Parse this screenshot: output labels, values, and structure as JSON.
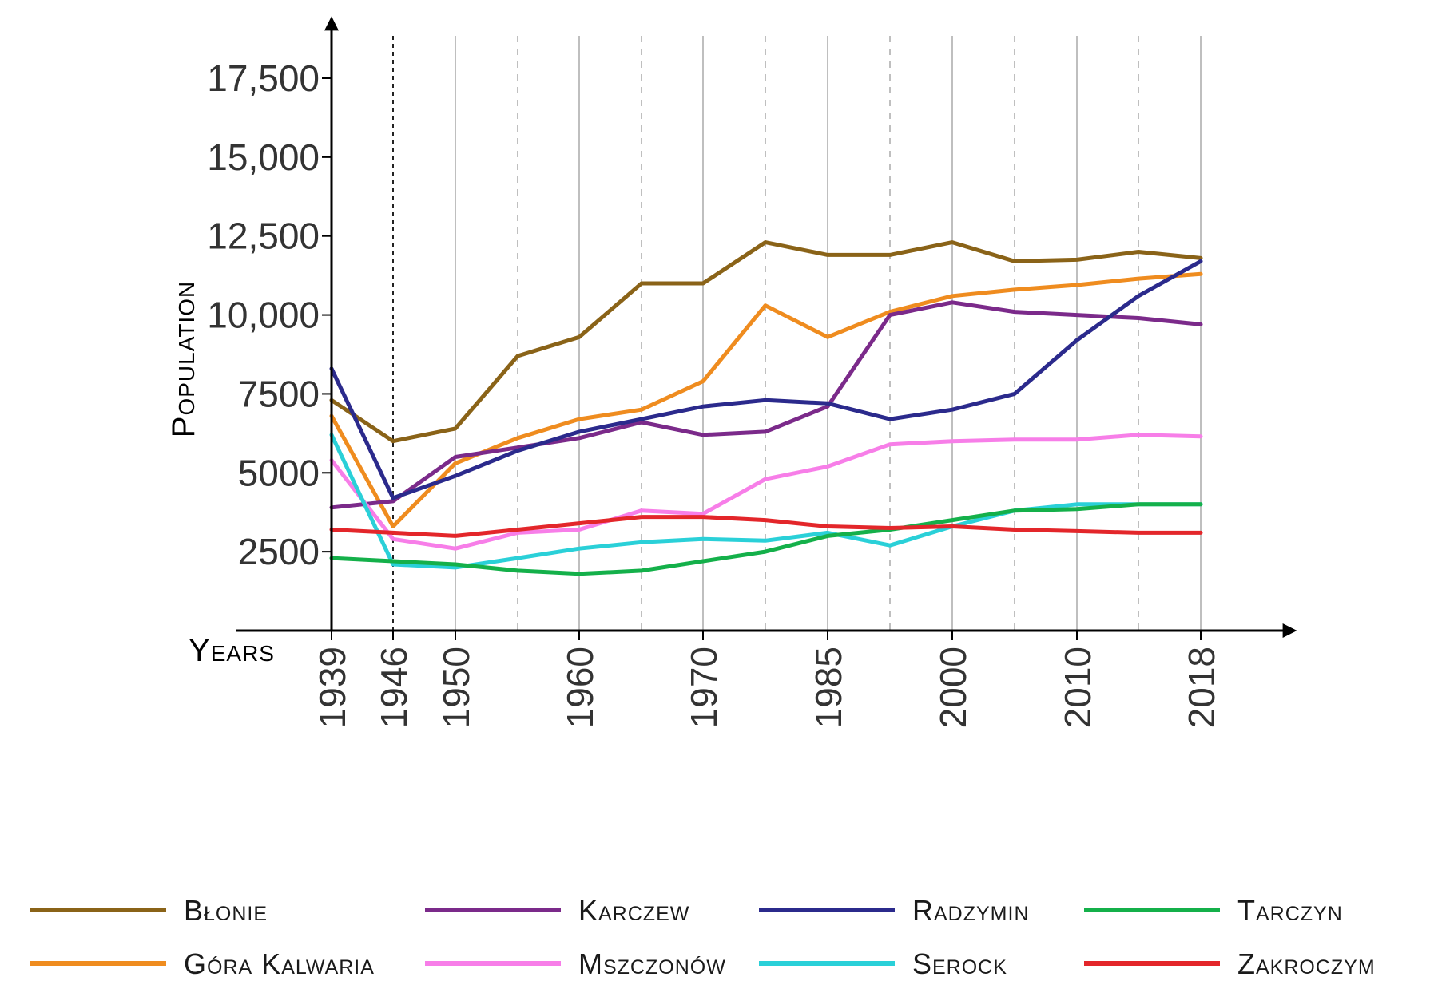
{
  "chart_data": {
    "type": "line",
    "title": "",
    "xlabel": "Years",
    "ylabel": "Population",
    "x": [
      1939,
      1946,
      1950,
      1955,
      1960,
      1965,
      1970,
      1975,
      1985,
      1990,
      2000,
      2005,
      2010,
      2015,
      2018
    ],
    "x_tick_labels": [
      "1939",
      "1946",
      "1950",
      "1960",
      "1970",
      "1985",
      "2000",
      "2010",
      "2018"
    ],
    "y_ticks": [
      2500,
      5000,
      7500,
      10000,
      12500,
      15000,
      17500
    ],
    "y_tick_labels": [
      "2500",
      "5000",
      "7500",
      "10,000",
      "12,500",
      "15,000",
      "17,500"
    ],
    "ylim": [
      0,
      19500
    ],
    "grid": "vertical",
    "legend_position": "bottom",
    "series": [
      {
        "name": "Błonie",
        "color": "#8a6318",
        "values": [
          7300,
          6000,
          6400,
          8700,
          9300,
          11000,
          11000,
          12300,
          11900,
          11900,
          12300,
          11700,
          11750,
          12000,
          11800
        ]
      },
      {
        "name": "Góra Kalwaria",
        "color": "#ef8c1f",
        "values": [
          6800,
          3300,
          5300,
          6100,
          6700,
          7000,
          7900,
          10300,
          9300,
          10100,
          10600,
          10800,
          10950,
          11150,
          11300
        ]
      },
      {
        "name": "Karczew",
        "color": "#7b2a8a",
        "values": [
          3900,
          4100,
          5500,
          5800,
          6100,
          6600,
          6200,
          6300,
          7100,
          10000,
          10400,
          10100,
          10000,
          9900,
          9700
        ]
      },
      {
        "name": "Mszczonów",
        "color": "#f77ee8",
        "values": [
          5400,
          2900,
          2600,
          3100,
          3200,
          3800,
          3700,
          4800,
          5200,
          5900,
          6000,
          6050,
          6050,
          6200,
          6150
        ]
      },
      {
        "name": "Radzymin",
        "color": "#2b2a8c",
        "values": [
          8300,
          4200,
          4900,
          5700,
          6300,
          6700,
          7100,
          7300,
          7200,
          6700,
          7000,
          7500,
          9200,
          10600,
          11700
        ]
      },
      {
        "name": "Serock",
        "color": "#2ad0d8",
        "values": [
          6200,
          2100,
          2000,
          2300,
          2600,
          2800,
          2900,
          2850,
          3100,
          2700,
          3300,
          3800,
          4000,
          4000,
          4000
        ]
      },
      {
        "name": "Tarczyn",
        "color": "#14b04a",
        "values": [
          2300,
          2200,
          2100,
          1900,
          1800,
          1900,
          2200,
          2500,
          3000,
          3200,
          3500,
          3800,
          3850,
          4000,
          4000
        ]
      },
      {
        "name": "Zakroczym",
        "color": "#e3262a",
        "values": [
          3200,
          3100,
          3000,
          3200,
          3400,
          3600,
          3600,
          3500,
          3300,
          3250,
          3300,
          3200,
          3150,
          3100,
          3100
        ]
      }
    ]
  }
}
